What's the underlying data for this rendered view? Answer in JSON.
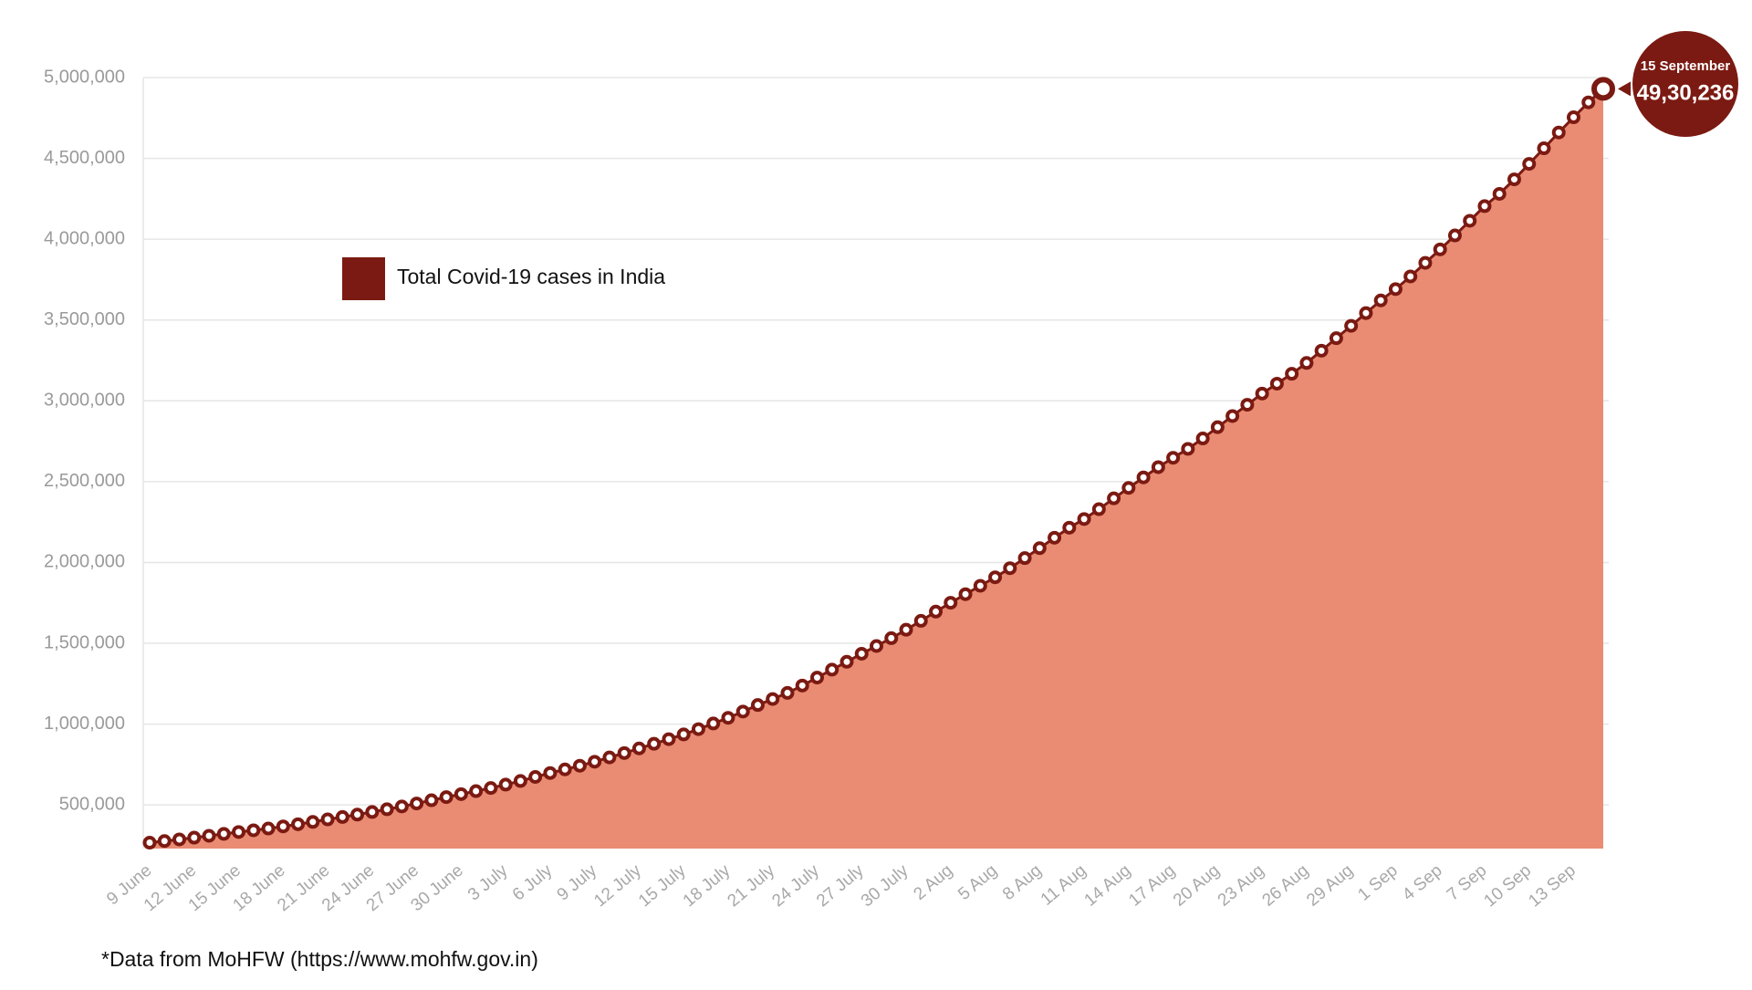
{
  "chart_data": {
    "type": "area",
    "categories": [
      "9 June",
      null,
      null,
      "12 June",
      null,
      null,
      "15 June",
      null,
      null,
      "18 June",
      null,
      null,
      "21 June",
      null,
      null,
      "24 June",
      null,
      null,
      "27 June",
      null,
      null,
      "30 June",
      null,
      null,
      "3 July",
      null,
      null,
      "6 July",
      null,
      null,
      "9 July",
      null,
      null,
      "12 July",
      null,
      null,
      "15 July",
      null,
      null,
      "18 July",
      null,
      null,
      "21 July",
      null,
      null,
      "24 July",
      null,
      null,
      "27 July",
      null,
      null,
      "30 July",
      null,
      null,
      "2 Aug",
      null,
      null,
      "5 Aug",
      null,
      null,
      "8 Aug",
      null,
      null,
      "11 Aug",
      null,
      null,
      "14 Aug",
      null,
      null,
      "17 Aug",
      null,
      null,
      "20 Aug",
      null,
      null,
      "23 Aug",
      null,
      null,
      "26 Aug",
      null,
      null,
      "29 Aug",
      null,
      null,
      "1 Sep",
      null,
      null,
      "4 Sep",
      null,
      null,
      "7 Sep",
      null,
      null,
      "10 Sep",
      null,
      null,
      "13 Sep",
      null,
      null
    ],
    "series": [
      {
        "name": "Total Covid-19 cases in India",
        "color": "#e98c73",
        "marker_color": "#7b1a12",
        "values": [
          266598,
          276583,
          286579,
          297535,
          308993,
          320922,
          332424,
          343091,
          354065,
          366946,
          380532,
          395048,
          410461,
          425282,
          440215,
          456183,
          473105,
          490401,
          508953,
          528859,
          548318,
          566840,
          585493,
          604641,
          625544,
          648315,
          673165,
          697413,
          719665,
          742417,
          767296,
          793802,
          820916,
          849553,
          878254,
          906752,
          936181,
          968876,
          1003832,
          1038716,
          1077618,
          1118043,
          1155191,
          1192915,
          1238635,
          1287945,
          1336861,
          1385522,
          1435453,
          1483156,
          1531669,
          1583792,
          1638870,
          1695988,
          1750723,
          1803695,
          1855745,
          1908254,
          1964536,
          2027074,
          2088611,
          2153010,
          2215074,
          2268675,
          2329638,
          2396637,
          2461190,
          2526192,
          2589682,
          2647663,
          2702742,
          2767273,
          2836925,
          2905823,
          2975701,
          3044940,
          3106348,
          3167323,
          3234474,
          3310234,
          3387500,
          3463972,
          3542733,
          3621245,
          3691166,
          3769523,
          3853406,
          3936747,
          4023179,
          4113811,
          4204613,
          4280422,
          4370128,
          4465863,
          4562414,
          4659984,
          4754356,
          4846427,
          4930236
        ],
        "value_labels": [
          null,
          null,
          null,
          null,
          null,
          null,
          null,
          null,
          null,
          null,
          null,
          null,
          null,
          null,
          null,
          null,
          null,
          null,
          null,
          null,
          null,
          null,
          null,
          null,
          null,
          null,
          null,
          null,
          null,
          null,
          null,
          null,
          null,
          null,
          null,
          null,
          null,
          null,
          null,
          null,
          null,
          null,
          null,
          null,
          null,
          null,
          null,
          null,
          null,
          null,
          null,
          null,
          null,
          null,
          null,
          null,
          null,
          null,
          null,
          null,
          null,
          null,
          null,
          null,
          null,
          null,
          null,
          null,
          null,
          null,
          null,
          null,
          null,
          null,
          null,
          null,
          null,
          null,
          null,
          null,
          null,
          null,
          null,
          null,
          null,
          null,
          null,
          null,
          null,
          null,
          null,
          null,
          null,
          null,
          null,
          null,
          null,
          null,
          "49,30,236"
        ]
      }
    ],
    "annotation": "15 September",
    "ylim": [
      230000,
      5000000
    ],
    "yticks": [
      {
        "value": 500000,
        "label": "500,000"
      },
      {
        "value": 1000000,
        "label": "1,000,000"
      },
      {
        "value": 1500000,
        "label": "1,500,000"
      },
      {
        "value": 2000000,
        "label": "2,000,000"
      },
      {
        "value": 2500000,
        "label": "2,500,000"
      },
      {
        "value": 3000000,
        "label": "3,000,000"
      },
      {
        "value": 3500000,
        "label": "3,500,000"
      },
      {
        "value": 4000000,
        "label": "4,000,000"
      },
      {
        "value": 4500000,
        "label": "4,500,000"
      },
      {
        "value": 5000000,
        "label": "5,000,000"
      }
    ],
    "grid": true,
    "legend": "upper left",
    "source": "*Data from MoHFW (https://www.mohfw.gov.in)"
  }
}
